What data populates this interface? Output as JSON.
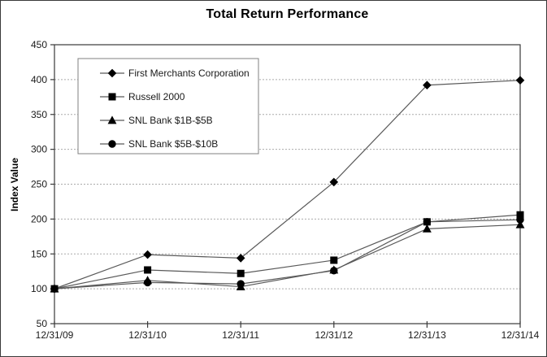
{
  "chart_data": {
    "type": "line",
    "title": "Total Return Performance",
    "xlabel": "",
    "ylabel": "Index Value",
    "x_labels": [
      "12/31/09",
      "12/31/10",
      "12/31/11",
      "12/31/12",
      "12/31/13",
      "12/31/14"
    ],
    "ylim": [
      50,
      450
    ],
    "yticks": [
      50,
      100,
      150,
      200,
      250,
      300,
      350,
      400,
      450
    ],
    "grid": "horizontal dashed gridlines",
    "legend_position": "inside upper-left",
    "series": [
      {
        "name": "First Merchants Corporation",
        "marker": "diamond",
        "values": [
          100,
          149,
          144,
          253,
          392,
          399
        ]
      },
      {
        "name": "Russell 2000",
        "marker": "square",
        "values": [
          100,
          127,
          122,
          141,
          196,
          206
        ]
      },
      {
        "name": "SNL Bank $1B-$5B",
        "marker": "triangle",
        "values": [
          100,
          112,
          103,
          127,
          186,
          192
        ]
      },
      {
        "name": "SNL Bank $5B-$10B",
        "marker": "circle",
        "values": [
          100,
          109,
          107,
          126,
          196,
          199
        ]
      }
    ],
    "colors": {
      "line": "#595959",
      "marker": "#000000",
      "grid": "#ababab",
      "axis": "#3a3a3a",
      "legend_border": "#808080",
      "text": "#000000",
      "background": "#ffffff"
    }
  }
}
